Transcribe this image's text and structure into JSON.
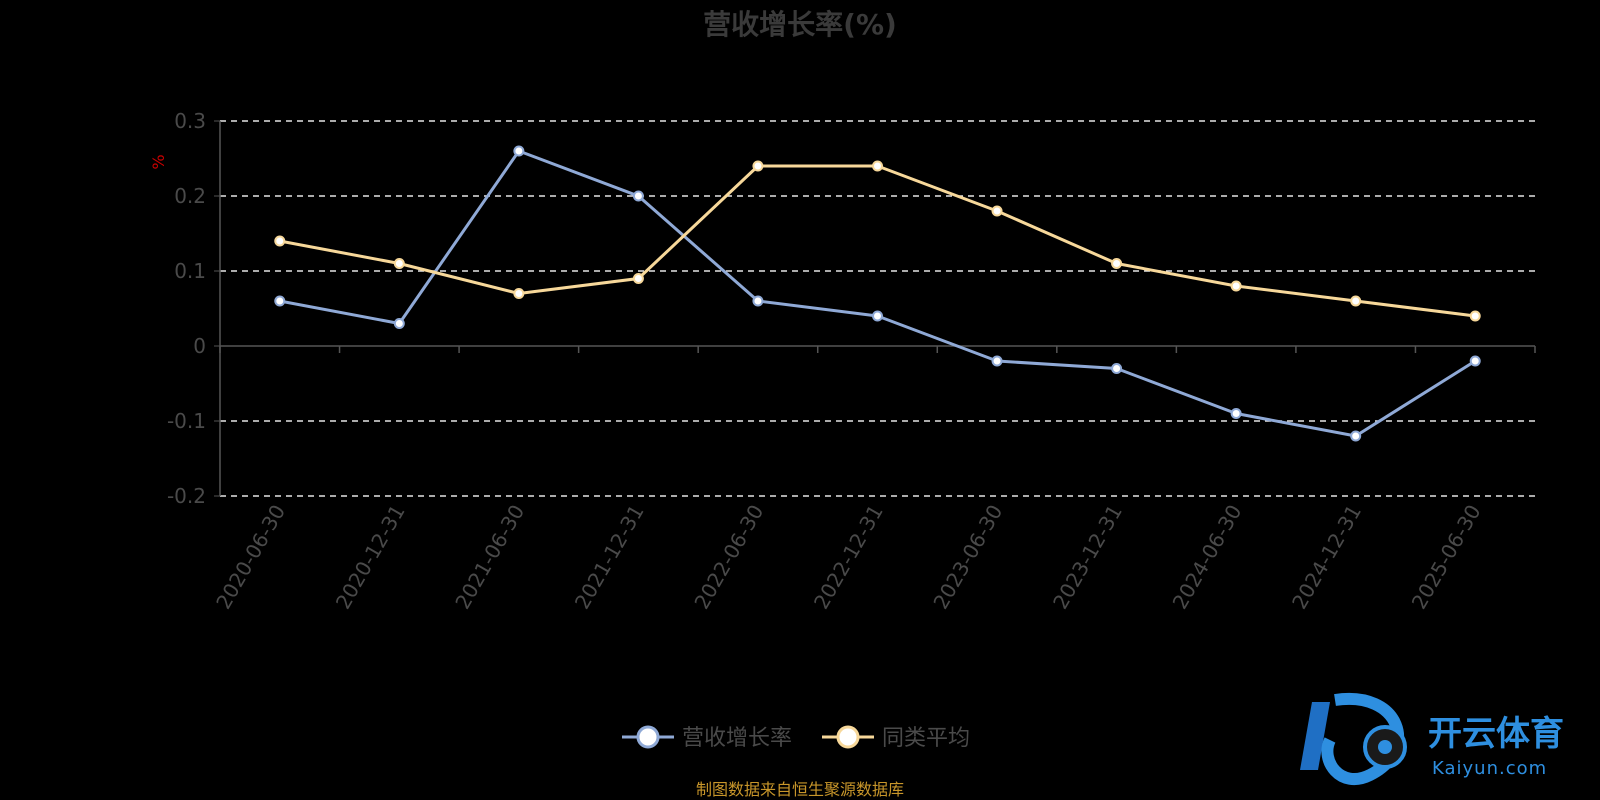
{
  "chart_data": {
    "type": "line",
    "title": "营收增长率(%)",
    "ylabel": "%",
    "xlabel": "",
    "categories": [
      "2020-06-30",
      "2020-12-31",
      "2021-06-30",
      "2021-12-31",
      "2022-06-30",
      "2022-12-31",
      "2023-06-30",
      "2023-12-31",
      "2024-06-30",
      "2024-12-31",
      "2025-06-30"
    ],
    "yticks": [
      "0.3",
      "0.2",
      "0.1",
      "0",
      "-0.1",
      "-0.2"
    ],
    "ylim": [
      -0.2,
      0.3
    ],
    "grid": true,
    "legend_position": "bottom-center",
    "series": [
      {
        "name": "营收增长率",
        "color": "#8fa9d6",
        "values": [
          0.06,
          0.03,
          0.26,
          0.2,
          0.06,
          0.04,
          -0.02,
          -0.03,
          -0.09,
          -0.12,
          -0.02
        ]
      },
      {
        "name": "同类平均",
        "color": "#f7d89a",
        "values": [
          0.14,
          0.11,
          0.07,
          0.09,
          0.24,
          0.24,
          0.18,
          0.11,
          0.08,
          0.06,
          0.04
        ]
      }
    ]
  },
  "source_note": "制图数据来自恒生聚源数据库",
  "watermark": {
    "logo_icon": "kaiyun-logo-icon",
    "text": "开云体育",
    "subtext": "Kaiyun.com"
  }
}
